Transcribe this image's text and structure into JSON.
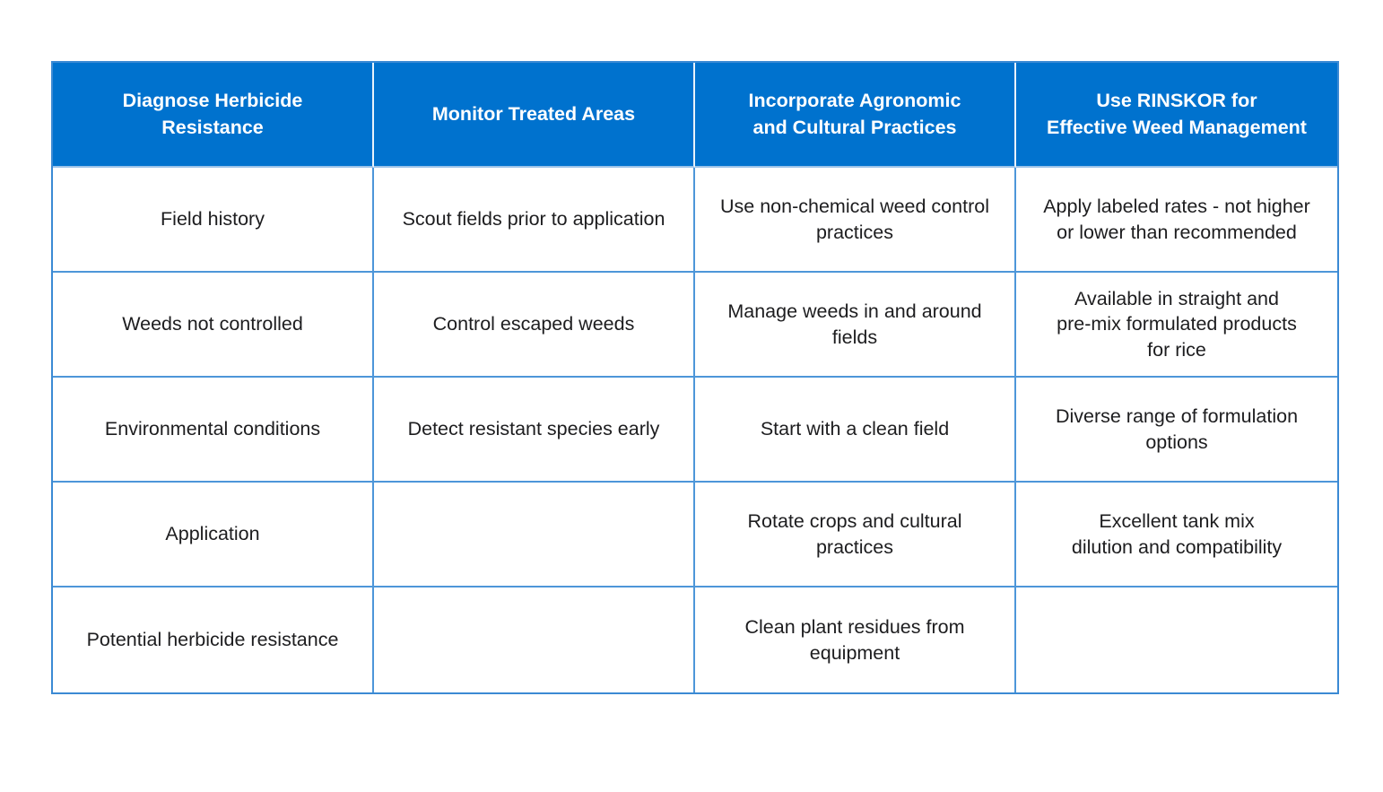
{
  "table": {
    "columns": [
      "Diagnose Herbicide\nResistance",
      "Monitor Treated Areas",
      "Incorporate Agronomic\nand Cultural Practices",
      "Use RINSKOR for\nEffective Weed Management"
    ],
    "rows": [
      [
        "Field history",
        "Scout fields prior to application",
        "Use non-chemical weed control\npractices",
        "Apply labeled rates - not higher\nor lower than recommended"
      ],
      [
        "Weeds not controlled",
        "Control escaped weeds",
        "Manage weeds in and around\nfields",
        "Available in straight and\npre-mix formulated products\nfor rice"
      ],
      [
        "Environmental conditions",
        "Detect resistant species early",
        "Start with a clean field",
        "Diverse range of formulation\noptions"
      ],
      [
        "Application",
        "",
        "Rotate crops and cultural\npractices",
        "Excellent tank mix\ndilution and compatibility"
      ],
      [
        "Potential herbicide resistance",
        "",
        "Clean plant residues from\nequipment",
        ""
      ]
    ],
    "colors": {
      "header_bg": "#0072CE",
      "header_text": "#FFFFFF",
      "cell_text": "#1D1D1F",
      "grid_border": "#4D96D9",
      "outer_border": "#3B8AD4",
      "header_divider": "#E9F2FB"
    }
  }
}
